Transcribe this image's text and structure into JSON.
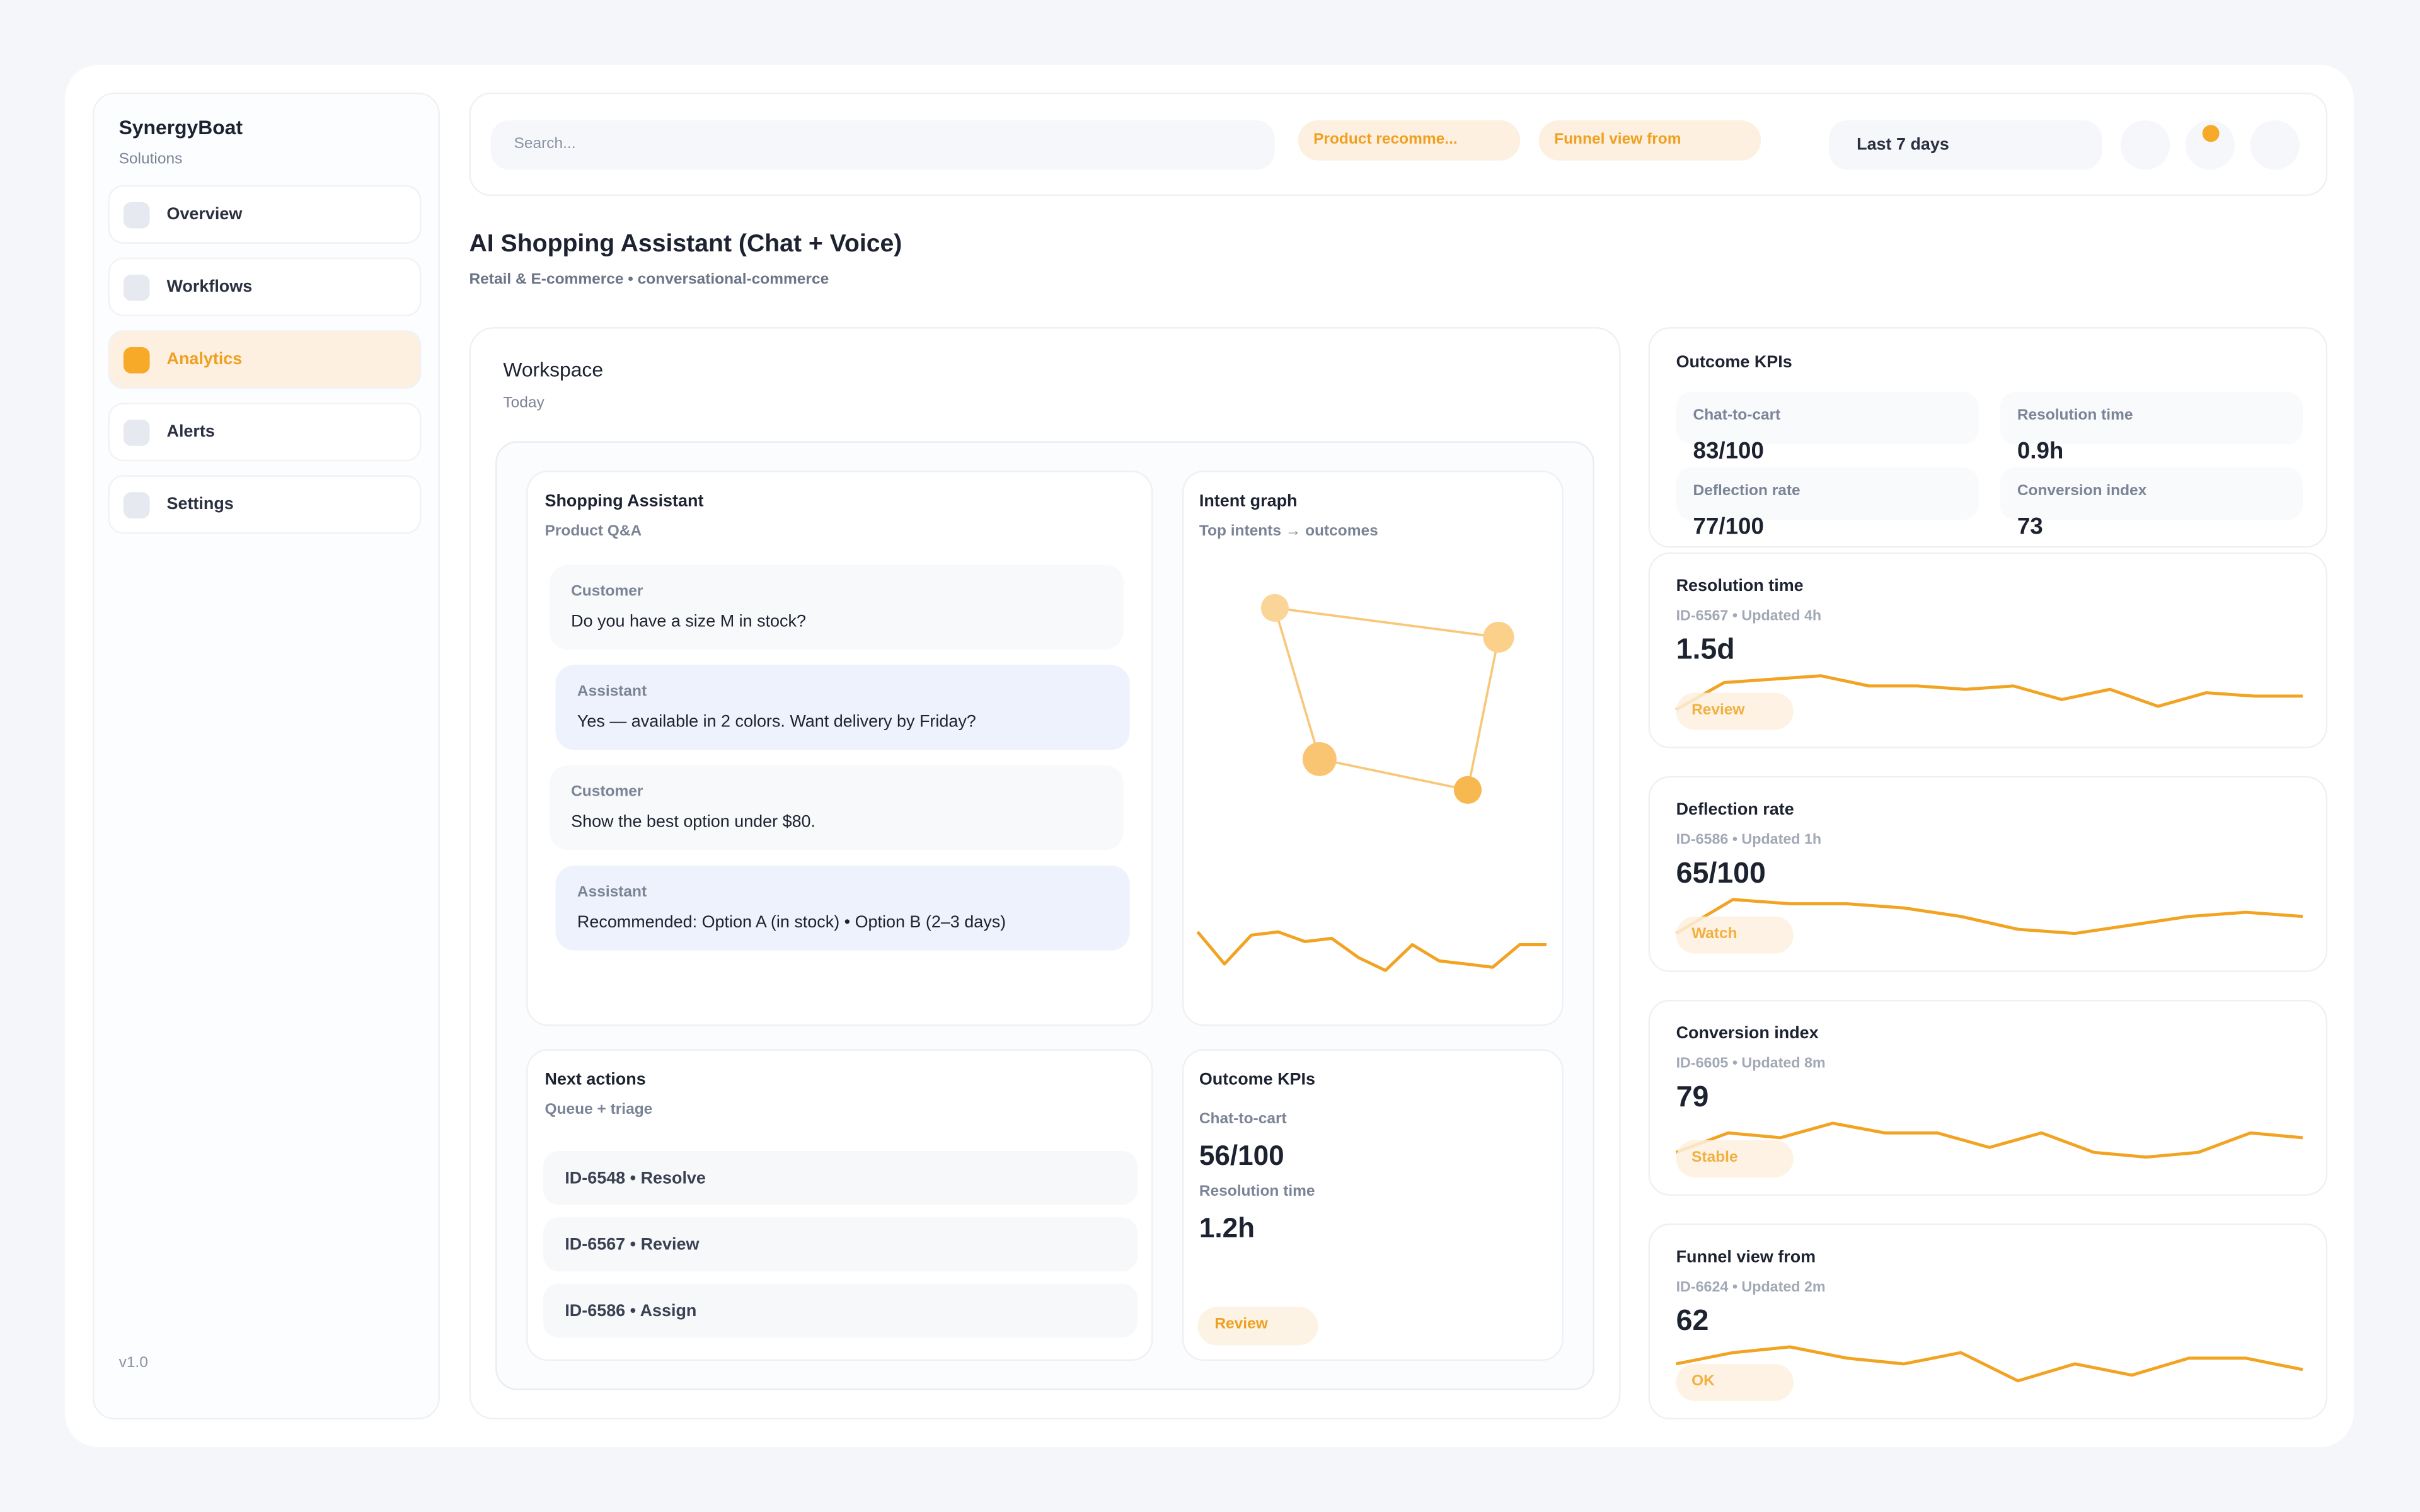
{
  "sidebar": {
    "brand": "SynergyBoat",
    "subtitle": "Solutions",
    "nav": [
      "Overview",
      "Workflows",
      "Analytics",
      "Alerts",
      "Settings"
    ],
    "version": "v1.0"
  },
  "topbar": {
    "search": "Search...",
    "chips": [
      "Product recomme...",
      "Funnel view from"
    ],
    "range": "Last 7 days"
  },
  "header": {
    "title": "AI Shopping Assistant (Chat + Voice)",
    "subtitle": "Retail & E-commerce • conversational-commerce"
  },
  "workspace": {
    "title": "Workspace",
    "subtitle": "Today",
    "chat": {
      "title": "Shopping Assistant",
      "subtitle": "Product Q&A",
      "messages": [
        {
          "role": "Customer",
          "text": "Do you have a size M in stock?"
        },
        {
          "role": "Assistant",
          "text": "Yes — available in 2 colors. Want delivery by Friday?"
        },
        {
          "role": "Customer",
          "text": "Show the best option under $80."
        },
        {
          "role": "Assistant",
          "text": "Recommended: Option A (in stock) • Option B (2–3 days)"
        }
      ]
    },
    "intent": {
      "title": "Intent graph",
      "subtitle": "Top intents → outcomes",
      "trend": [
        8,
        3,
        7.5,
        8,
        6.5,
        7,
        4,
        2,
        6,
        3.5,
        3,
        2.5,
        6,
        6
      ]
    },
    "actions": {
      "title": "Next actions",
      "subtitle": "Queue + triage",
      "items": [
        "ID-6548 • Resolve",
        "ID-6567 • Review",
        "ID-6586 • Assign"
      ]
    },
    "kpis": {
      "title": "Outcome KPIs",
      "items": [
        {
          "label": "Chat-to-cart",
          "value": "56/100"
        },
        {
          "label": "Resolution time",
          "value": "1.2h"
        }
      ],
      "button": "Review"
    }
  },
  "side": {
    "kpis": {
      "title": "Outcome KPIs",
      "items": [
        {
          "label": "Chat-to-cart",
          "value": "83/100"
        },
        {
          "label": "Resolution time",
          "value": "0.9h"
        },
        {
          "label": "Deflection rate",
          "value": "77/100"
        },
        {
          "label": "Conversion index",
          "value": "73"
        }
      ]
    },
    "cards": [
      {
        "title": "Resolution time",
        "meta": "ID-6567 • Updated 4h",
        "value": "1.5d",
        "badge": "Review",
        "trend": [
          2,
          6,
          6.5,
          7,
          5.5,
          5.5,
          5,
          5.5,
          3.5,
          5,
          2.5,
          4.5,
          4,
          4
        ]
      },
      {
        "title": "Deflection rate",
        "meta": "ID-6586 • Updated 1h",
        "value": "65/100",
        "badge": "Watch",
        "trend": [
          2,
          6,
          5.5,
          5.5,
          5,
          4,
          2.5,
          2,
          3,
          4,
          4.5,
          4
        ]
      },
      {
        "title": "Conversion index",
        "meta": "ID-6605 • Updated 8m",
        "value": "79",
        "badge": "Stable",
        "trend": [
          3,
          5,
          4.5,
          6,
          5,
          5,
          3.5,
          5,
          3,
          2.5,
          3,
          5,
          4.5
        ]
      },
      {
        "title": "Funnel view from",
        "meta": "ID-6624 • Updated 2m",
        "value": "62",
        "badge": "OK",
        "trend": [
          4,
          5,
          5.5,
          4.5,
          4,
          5,
          2.5,
          4,
          3,
          4.5,
          4.5,
          3.5
        ]
      }
    ]
  }
}
